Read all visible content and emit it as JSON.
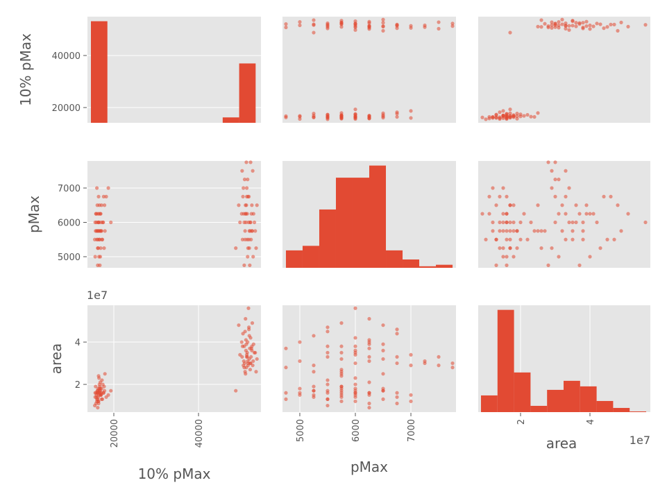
{
  "chart_data": {
    "type": "scatter_matrix",
    "variables": [
      "10% pMax",
      "pMax",
      "area"
    ],
    "axis_labels": [
      "10% pMax",
      "pMax",
      "area"
    ],
    "offset_text": {
      "area": "1e7"
    },
    "ranges": {
      "10% pMax": [
        13770,
        54750
      ],
      "pMax": [
        4688,
        7812
      ],
      "area": [
        0.78,
        5.74
      ]
    },
    "y_ranges": {
      "10% pMax": [
        14133,
        54933
      ],
      "pMax": [
        4677,
        7788
      ],
      "area": [
        0.69,
        5.74
      ]
    },
    "ticks": {
      "10% pMax": [
        {
          "v": 20000,
          "label": "20000"
        },
        {
          "v": 40000,
          "label": "40000"
        }
      ],
      "pMax": [
        {
          "v": 5000,
          "label": "5000"
        },
        {
          "v": 6000,
          "label": "6000"
        },
        {
          "v": 7000,
          "label": "7000"
        }
      ],
      "area": [
        {
          "v": 2,
          "label": "2"
        },
        {
          "v": 4,
          "label": "4"
        }
      ]
    },
    "area_units": "1e7",
    "histograms": {
      "10% pMax": {
        "edges_start": 14590,
        "bin_width": 3890,
        "counts": [
          320,
          0,
          0,
          0,
          0,
          0,
          0,
          0,
          17,
          187
        ]
      },
      "pMax": {
        "edges_start": 4750,
        "bin_width": 300,
        "counts": [
          23,
          29,
          77,
          119,
          119,
          135,
          23,
          11,
          2,
          4
        ]
      },
      "area": {
        "edges_start": 0.86,
        "bin_width": 0.476,
        "counts": [
          24,
          147,
          57,
          9,
          32,
          45,
          37,
          16,
          6,
          1
        ]
      }
    },
    "records_fields": [
      "10% pMax",
      "pMax",
      "area"
    ],
    "records": [
      [
        16200,
        5500,
        1.6
      ],
      [
        16800,
        5750,
        1.7
      ],
      [
        15900,
        6000,
        1.5
      ],
      [
        17100,
        5750,
        1.8
      ],
      [
        16500,
        6250,
        1.6
      ],
      [
        16300,
        5250,
        1.4
      ],
      [
        17400,
        6000,
        2.0
      ],
      [
        16000,
        5500,
        1.3
      ],
      [
        16700,
        5750,
        1.9
      ],
      [
        15600,
        5000,
        1.6
      ],
      [
        16900,
        6250,
        1.5
      ],
      [
        17800,
        6500,
        1.7
      ],
      [
        16400,
        6000,
        1.2
      ],
      [
        16100,
        5750,
        1.6
      ],
      [
        17200,
        5500,
        2.2
      ],
      [
        15800,
        6250,
        1.1
      ],
      [
        16600,
        6500,
        1.8
      ],
      [
        17000,
        6000,
        1.6
      ],
      [
        16200,
        5250,
        1.7
      ],
      [
        18200,
        6750,
        1.4
      ],
      [
        16500,
        5000,
        1.5
      ],
      [
        15700,
        5750,
        1.9
      ],
      [
        16800,
        6250,
        2.1
      ],
      [
        17300,
        5500,
        1.3
      ],
      [
        16300,
        6000,
        1.8
      ],
      [
        19300,
        6000,
        1.7
      ],
      [
        16000,
        7000,
        1.2
      ],
      [
        16700,
        4750,
        1.6
      ],
      [
        17600,
        6750,
        1.6
      ],
      [
        16400,
        5750,
        2.4
      ],
      [
        15500,
        5500,
        1.0
      ],
      [
        16900,
        5250,
        1.5
      ],
      [
        17100,
        6500,
        1.3
      ],
      [
        16200,
        6250,
        0.9
      ],
      [
        16600,
        5500,
        2.0
      ],
      [
        15900,
        5750,
        1.4
      ],
      [
        17500,
        6000,
        1.6
      ],
      [
        16800,
        5000,
        1.8
      ],
      [
        16100,
        6500,
        1.7
      ],
      [
        16300,
        5750,
        1.2
      ],
      [
        17700,
        5250,
        1.9
      ],
      [
        16500,
        6000,
        2.3
      ],
      [
        15800,
        6250,
        1.6
      ],
      [
        17000,
        5750,
        1.5
      ],
      [
        16400,
        6750,
        1.1
      ],
      [
        16600,
        5500,
        1.7
      ],
      [
        18700,
        7000,
        1.5
      ],
      [
        17900,
        5750,
        2.5
      ],
      [
        15600,
        6000,
        1.4
      ],
      [
        16200,
        4750,
        1.3
      ],
      [
        51500,
        5500,
        3.5
      ],
      [
        52000,
        5750,
        3.2
      ],
      [
        50800,
        6000,
        3.8
      ],
      [
        51200,
        6250,
        4.1
      ],
      [
        52600,
        6500,
        3.6
      ],
      [
        51700,
        5250,
        2.9
      ],
      [
        50500,
        6750,
        4.4
      ],
      [
        52200,
        6000,
        3.0
      ],
      [
        51000,
        5750,
        2.6
      ],
      [
        53000,
        6250,
        3.9
      ],
      [
        51400,
        7000,
        3.4
      ],
      [
        49500,
        6500,
        4.8
      ],
      [
        52400,
        5500,
        3.3
      ],
      [
        51800,
        6000,
        5.6
      ],
      [
        50900,
        7250,
        3.0
      ],
      [
        52800,
        7500,
        2.9
      ],
      [
        51300,
        7750,
        2.8
      ],
      [
        51600,
        5000,
        4.0
      ],
      [
        52100,
        4750,
        3.7
      ],
      [
        50700,
        6250,
        3.1
      ],
      [
        51900,
        6750,
        4.6
      ],
      [
        53400,
        5750,
        3.5
      ],
      [
        51100,
        6500,
        2.5
      ],
      [
        52300,
        6000,
        4.2
      ],
      [
        50400,
        5500,
        3.8
      ],
      [
        48800,
        5250,
        1.7
      ],
      [
        51500,
        6250,
        3.3
      ],
      [
        52700,
        5750,
        4.9
      ],
      [
        51200,
        6000,
        3.6
      ],
      [
        53800,
        6500,
        3.2
      ],
      [
        50600,
        7000,
        2.9
      ],
      [
        52000,
        5250,
        4.3
      ],
      [
        51700,
        6750,
        3.0
      ],
      [
        52500,
        6250,
        3.7
      ],
      [
        51000,
        5500,
        4.5
      ],
      [
        49800,
        6000,
        3.4
      ],
      [
        52900,
        5000,
        3.1
      ],
      [
        51300,
        6500,
        3.9
      ],
      [
        52200,
        5750,
        2.7
      ],
      [
        51600,
        7250,
        3.1
      ],
      [
        50200,
        6250,
        4.0
      ],
      [
        53200,
        6000,
        3.5
      ],
      [
        51900,
        5500,
        4.7
      ],
      [
        51400,
        6750,
        3.3
      ],
      [
        52600,
        5750,
        3.8
      ],
      [
        50800,
        4750,
        2.8
      ],
      [
        52300,
        7750,
        3.0
      ],
      [
        50300,
        7500,
        3.3
      ],
      [
        53600,
        5250,
        2.6
      ],
      [
        51100,
        6250,
        5.1
      ]
    ],
    "colors": {
      "marker": "#E24A33",
      "panel_bg": "#E5E5E5",
      "grid": "#FFFFFF",
      "text": "#555555"
    }
  }
}
